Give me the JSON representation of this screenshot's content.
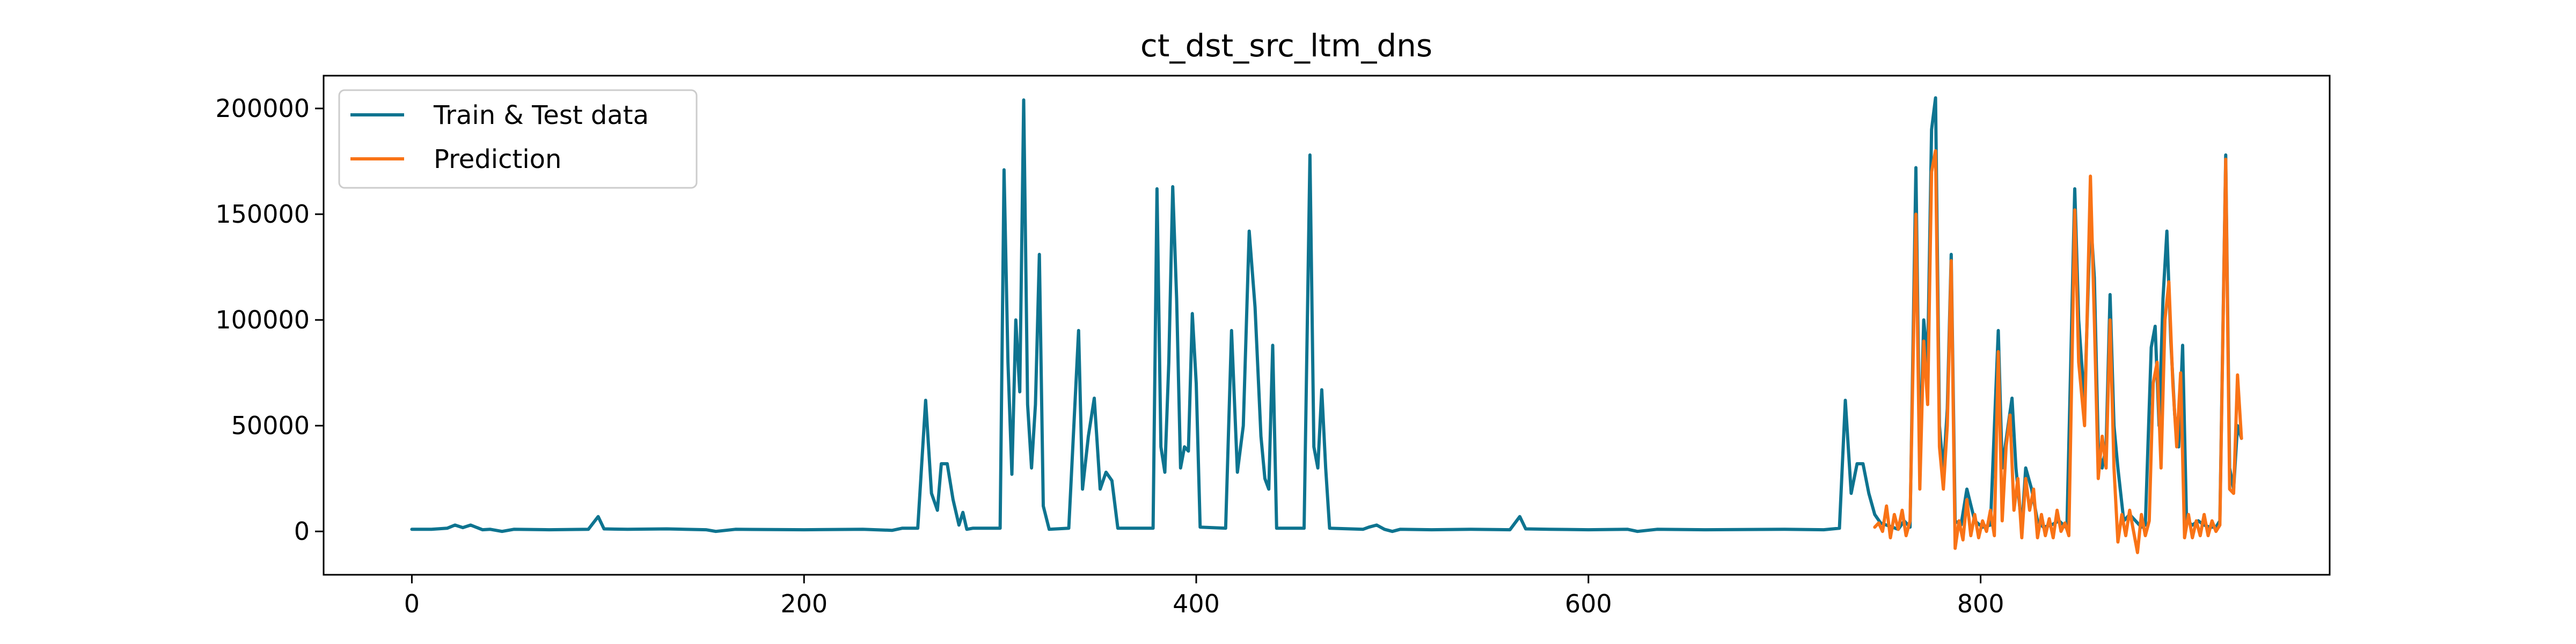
{
  "chart_data": {
    "type": "line",
    "title": "ct_dst_src_ltm_dns",
    "xlabel": "",
    "ylabel": "",
    "xlim": [
      -45,
      978
    ],
    "ylim": [
      -20500,
      215500
    ],
    "grid": false,
    "legend_position": "top-left",
    "x_ticks": [
      0,
      200,
      400,
      600,
      800
    ],
    "x_tick_labels": [
      "0",
      "200",
      "400",
      "600",
      "800"
    ],
    "y_ticks": [
      0,
      50000,
      100000,
      150000,
      200000
    ],
    "y_tick_labels": [
      "0",
      "50000",
      "100000",
      "150000",
      "200000"
    ],
    "series": [
      {
        "name": "Train & Test data",
        "color": "#0e7490",
        "points": [
          [
            0,
            1000
          ],
          [
            10,
            1000
          ],
          [
            18,
            1500
          ],
          [
            22,
            3000
          ],
          [
            26,
            1800
          ],
          [
            30,
            3000
          ],
          [
            36,
            800
          ],
          [
            40,
            1000
          ],
          [
            46,
            0
          ],
          [
            52,
            1000
          ],
          [
            70,
            800
          ],
          [
            90,
            1000
          ],
          [
            95,
            7000
          ],
          [
            98,
            1200
          ],
          [
            110,
            1000
          ],
          [
            130,
            1200
          ],
          [
            150,
            800
          ],
          [
            155,
            0
          ],
          [
            165,
            1000
          ],
          [
            200,
            800
          ],
          [
            230,
            1000
          ],
          [
            245,
            500
          ],
          [
            250,
            1500
          ],
          [
            258,
            1500
          ],
          [
            262,
            62000
          ],
          [
            265,
            18000
          ],
          [
            268,
            10000
          ],
          [
            270,
            32000
          ],
          [
            273,
            32000
          ],
          [
            276,
            15000
          ],
          [
            279,
            3000
          ],
          [
            281,
            9000
          ],
          [
            283,
            1000
          ],
          [
            286,
            1500
          ],
          [
            300,
            1500
          ],
          [
            302,
            171000
          ],
          [
            304,
            80000
          ],
          [
            306,
            27000
          ],
          [
            308,
            100000
          ],
          [
            310,
            66000
          ],
          [
            312,
            204000
          ],
          [
            314,
            60000
          ],
          [
            316,
            30000
          ],
          [
            318,
            60000
          ],
          [
            320,
            131000
          ],
          [
            322,
            12000
          ],
          [
            325,
            1000
          ],
          [
            335,
            1500
          ],
          [
            340,
            95000
          ],
          [
            342,
            20000
          ],
          [
            345,
            45000
          ],
          [
            348,
            63000
          ],
          [
            351,
            20000
          ],
          [
            354,
            28000
          ],
          [
            357,
            24000
          ],
          [
            360,
            1500
          ],
          [
            378,
            1500
          ],
          [
            380,
            162000
          ],
          [
            382,
            40000
          ],
          [
            384,
            28000
          ],
          [
            386,
            80000
          ],
          [
            388,
            163000
          ],
          [
            390,
            110000
          ],
          [
            392,
            30000
          ],
          [
            394,
            40000
          ],
          [
            396,
            38000
          ],
          [
            398,
            103000
          ],
          [
            400,
            70000
          ],
          [
            402,
            2000
          ],
          [
            415,
            1500
          ],
          [
            418,
            95000
          ],
          [
            421,
            28000
          ],
          [
            424,
            50000
          ],
          [
            427,
            142000
          ],
          [
            430,
            106000
          ],
          [
            433,
            45000
          ],
          [
            435,
            25000
          ],
          [
            437,
            20000
          ],
          [
            439,
            88000
          ],
          [
            441,
            1500
          ],
          [
            455,
            1500
          ],
          [
            458,
            178000
          ],
          [
            460,
            40000
          ],
          [
            462,
            30000
          ],
          [
            464,
            67000
          ],
          [
            466,
            30000
          ],
          [
            468,
            1500
          ],
          [
            485,
            1000
          ],
          [
            488,
            2000
          ],
          [
            492,
            3000
          ],
          [
            496,
            1000
          ],
          [
            500,
            0
          ],
          [
            504,
            1000
          ],
          [
            520,
            800
          ],
          [
            540,
            1000
          ],
          [
            560,
            800
          ],
          [
            565,
            7000
          ],
          [
            568,
            1200
          ],
          [
            580,
            1000
          ],
          [
            600,
            800
          ],
          [
            620,
            1000
          ],
          [
            625,
            0
          ],
          [
            635,
            1000
          ],
          [
            660,
            800
          ],
          [
            700,
            1000
          ],
          [
            720,
            800
          ],
          [
            728,
            1500
          ],
          [
            731,
            62000
          ],
          [
            734,
            18000
          ],
          [
            737,
            32000
          ],
          [
            740,
            32000
          ],
          [
            743,
            18000
          ],
          [
            746,
            8000
          ],
          [
            749,
            4000
          ],
          [
            752,
            3000
          ],
          [
            755,
            2000
          ],
          [
            758,
            1000
          ],
          [
            761,
            5000
          ],
          [
            764,
            2000
          ],
          [
            767,
            172000
          ],
          [
            769,
            30000
          ],
          [
            771,
            100000
          ],
          [
            773,
            80000
          ],
          [
            775,
            190000
          ],
          [
            777,
            205000
          ],
          [
            779,
            50000
          ],
          [
            781,
            28000
          ],
          [
            783,
            58000
          ],
          [
            785,
            131000
          ],
          [
            787,
            5000
          ],
          [
            790,
            3000
          ],
          [
            793,
            20000
          ],
          [
            797,
            5000
          ],
          [
            801,
            2000
          ],
          [
            805,
            3000
          ],
          [
            809,
            95000
          ],
          [
            811,
            30000
          ],
          [
            814,
            50000
          ],
          [
            816,
            63000
          ],
          [
            818,
            30000
          ],
          [
            821,
            1500
          ],
          [
            823,
            30000
          ],
          [
            826,
            20000
          ],
          [
            829,
            5000
          ],
          [
            832,
            2000
          ],
          [
            836,
            3000
          ],
          [
            840,
            5000
          ],
          [
            844,
            1500
          ],
          [
            848,
            162000
          ],
          [
            850,
            100000
          ],
          [
            853,
            60000
          ],
          [
            856,
            150000
          ],
          [
            858,
            120000
          ],
          [
            860,
            40000
          ],
          [
            862,
            30000
          ],
          [
            864,
            40000
          ],
          [
            866,
            112000
          ],
          [
            868,
            50000
          ],
          [
            870,
            30000
          ],
          [
            873,
            5000
          ],
          [
            876,
            8000
          ],
          [
            879,
            5000
          ],
          [
            882,
            2000
          ],
          [
            884,
            3000
          ],
          [
            887,
            87000
          ],
          [
            889,
            97000
          ],
          [
            891,
            50000
          ],
          [
            893,
            110000
          ],
          [
            895,
            142000
          ],
          [
            897,
            90000
          ],
          [
            899,
            55000
          ],
          [
            901,
            40000
          ],
          [
            903,
            88000
          ],
          [
            905,
            5000
          ],
          [
            908,
            3000
          ],
          [
            911,
            5000
          ],
          [
            914,
            3000
          ],
          [
            917,
            2000
          ],
          [
            920,
            2000
          ],
          [
            922,
            5000
          ],
          [
            925,
            178000
          ],
          [
            927,
            30000
          ],
          [
            929,
            20000
          ],
          [
            931,
            50000
          ],
          [
            933,
            44000
          ]
        ]
      },
      {
        "name": "Prediction",
        "color": "#f97316",
        "points": [
          [
            746,
            2000
          ],
          [
            748,
            4000
          ],
          [
            750,
            0
          ],
          [
            752,
            12000
          ],
          [
            754,
            -3000
          ],
          [
            756,
            8000
          ],
          [
            758,
            1000
          ],
          [
            760,
            10000
          ],
          [
            762,
            -2000
          ],
          [
            764,
            5000
          ],
          [
            767,
            150000
          ],
          [
            769,
            20000
          ],
          [
            771,
            90000
          ],
          [
            773,
            60000
          ],
          [
            775,
            170000
          ],
          [
            777,
            180000
          ],
          [
            779,
            40000
          ],
          [
            781,
            20000
          ],
          [
            783,
            50000
          ],
          [
            785,
            128000
          ],
          [
            787,
            -8000
          ],
          [
            789,
            5000
          ],
          [
            791,
            -4000
          ],
          [
            793,
            15000
          ],
          [
            795,
            -2000
          ],
          [
            797,
            8000
          ],
          [
            799,
            -3000
          ],
          [
            801,
            5000
          ],
          [
            803,
            0
          ],
          [
            805,
            10000
          ],
          [
            807,
            -2000
          ],
          [
            809,
            85000
          ],
          [
            811,
            5000
          ],
          [
            813,
            40000
          ],
          [
            815,
            55000
          ],
          [
            817,
            10000
          ],
          [
            819,
            25000
          ],
          [
            821,
            -3000
          ],
          [
            823,
            25000
          ],
          [
            825,
            10000
          ],
          [
            827,
            20000
          ],
          [
            829,
            -3000
          ],
          [
            831,
            8000
          ],
          [
            833,
            -2000
          ],
          [
            835,
            6000
          ],
          [
            837,
            -3000
          ],
          [
            839,
            10000
          ],
          [
            841,
            0
          ],
          [
            843,
            4000
          ],
          [
            845,
            -2000
          ],
          [
            848,
            152000
          ],
          [
            850,
            80000
          ],
          [
            853,
            50000
          ],
          [
            856,
            168000
          ],
          [
            858,
            100000
          ],
          [
            860,
            25000
          ],
          [
            862,
            45000
          ],
          [
            864,
            30000
          ],
          [
            866,
            100000
          ],
          [
            868,
            30000
          ],
          [
            870,
            -5000
          ],
          [
            872,
            8000
          ],
          [
            874,
            -2000
          ],
          [
            876,
            10000
          ],
          [
            878,
            0
          ],
          [
            880,
            -10000
          ],
          [
            882,
            8000
          ],
          [
            884,
            -2000
          ],
          [
            886,
            5000
          ],
          [
            888,
            70000
          ],
          [
            890,
            80000
          ],
          [
            892,
            30000
          ],
          [
            894,
            100000
          ],
          [
            896,
            118000
          ],
          [
            898,
            70000
          ],
          [
            900,
            40000
          ],
          [
            902,
            75000
          ],
          [
            904,
            -3000
          ],
          [
            906,
            8000
          ],
          [
            908,
            -3000
          ],
          [
            910,
            5000
          ],
          [
            912,
            -2000
          ],
          [
            914,
            8000
          ],
          [
            916,
            -2000
          ],
          [
            918,
            5000
          ],
          [
            920,
            0
          ],
          [
            922,
            3000
          ],
          [
            925,
            176000
          ],
          [
            927,
            20000
          ],
          [
            929,
            18000
          ],
          [
            931,
            74000
          ],
          [
            933,
            44000
          ]
        ]
      }
    ]
  }
}
